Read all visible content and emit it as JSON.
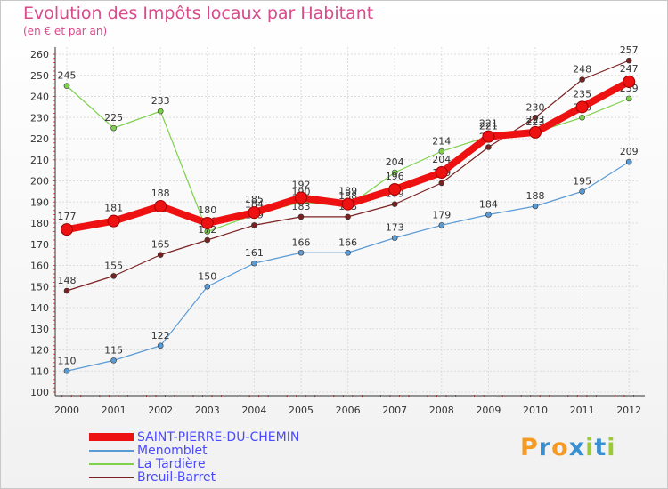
{
  "title": "Evolution des Impôts locaux par Habitant",
  "subtitle": "(en € et par an)",
  "logo_text": "Proxiti",
  "logo_colors": [
    "#f59a23",
    "#3a8fd1",
    "#f59a23",
    "#3a8fd1",
    "#9bc93a",
    "#3a8fd1",
    "#9bc93a"
  ],
  "chart_data": {
    "type": "line",
    "categories": [
      "2000",
      "2001",
      "2002",
      "2003",
      "2004",
      "2005",
      "2006",
      "2007",
      "2008",
      "2009",
      "2010",
      "2011",
      "2012"
    ],
    "ylim": [
      100,
      260
    ],
    "yticks": [
      "100",
      "110",
      "120",
      "130",
      "140",
      "150",
      "160",
      "170",
      "180",
      "190",
      "200",
      "210",
      "220",
      "230",
      "240",
      "250",
      "260"
    ],
    "grid": true,
    "legend_position": "bottom-left",
    "series": [
      {
        "name": "Menomblet",
        "color": "#5b9bd5",
        "emphasis": false,
        "values": [
          110,
          115,
          122,
          150,
          161,
          166,
          166,
          173,
          179,
          184,
          188,
          195,
          209
        ],
        "labels": [
          "110",
          "115",
          "122",
          "150",
          "161",
          "166",
          "166",
          "173",
          "179",
          "184",
          "188",
          "195",
          "209"
        ]
      },
      {
        "name": "La Tardière",
        "color": "#7ed14a",
        "emphasis": false,
        "values": [
          245,
          225,
          233,
          176,
          184,
          190,
          188,
          204,
          214,
          221,
          223,
          230,
          239
        ],
        "labels": [
          "245",
          "225",
          "233",
          "176",
          "184",
          "190",
          "188",
          "204",
          "214",
          "221",
          "223",
          "230",
          "239"
        ]
      },
      {
        "name": "Breuil-Barret",
        "color": "#7a2222",
        "emphasis": false,
        "values": [
          148,
          155,
          165,
          172,
          179,
          183,
          183,
          189,
          199,
          216,
          230,
          248,
          257
        ],
        "labels": [
          "148",
          "155",
          "165",
          "172",
          "179",
          "183",
          "183",
          "189",
          "199",
          "216",
          "230",
          "248",
          "257"
        ]
      },
      {
        "name": "SAINT-PIERRE-DU-CHEMIN",
        "color": "#ee1111",
        "emphasis": true,
        "values": [
          177,
          181,
          188,
          180,
          185,
          192,
          189,
          196,
          204,
          221,
          223,
          235,
          247
        ],
        "labels": [
          "177",
          "181",
          "188",
          "180",
          "185",
          "192",
          "189",
          "196",
          "204",
          "221",
          "223",
          "235",
          "247"
        ]
      }
    ],
    "legend": [
      {
        "name": "SAINT-PIERRE-DU-CHEMIN",
        "color": "#ee1111",
        "thick": true
      },
      {
        "name": "Menomblet",
        "color": "#5b9bd5",
        "thick": false
      },
      {
        "name": "La Tardière",
        "color": "#7ed14a",
        "thick": false
      },
      {
        "name": "Breuil-Barret",
        "color": "#7a2222",
        "thick": false
      }
    ]
  }
}
